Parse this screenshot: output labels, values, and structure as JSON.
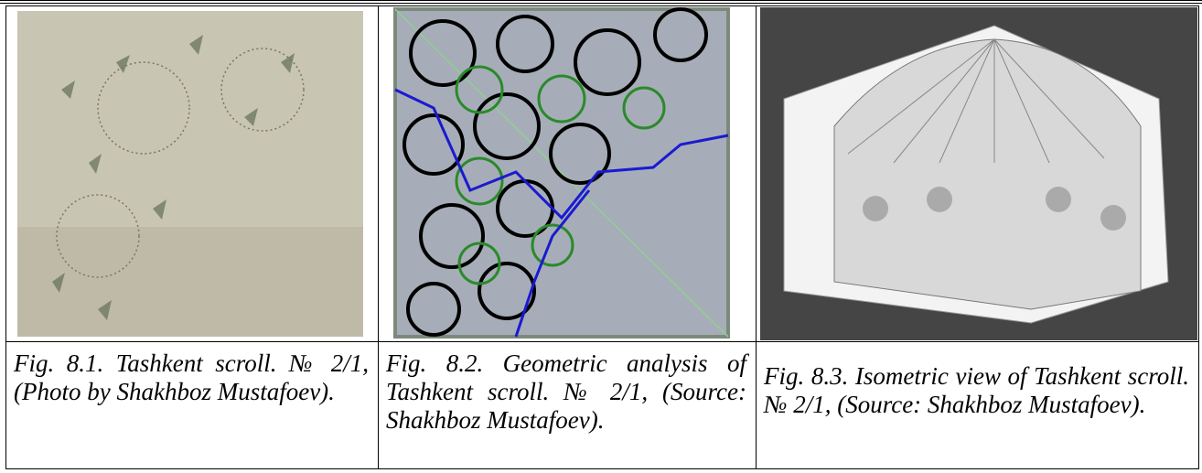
{
  "figures": [
    {
      "caption": "Fig. 8.1. Tashkent scroll. № 2/1, (Photo by Shakhboz Mustafoev)."
    },
    {
      "caption": "Fig. 8.2. Geometric analysis of Tashkent scroll. № 2/1, (Source: Shakhboz Mustafoev)."
    },
    {
      "caption": "Fig. 8.3. Isometric view of Tashkent scroll. № 2/1, (Source: Shakhboz Mustafoev)."
    }
  ]
}
